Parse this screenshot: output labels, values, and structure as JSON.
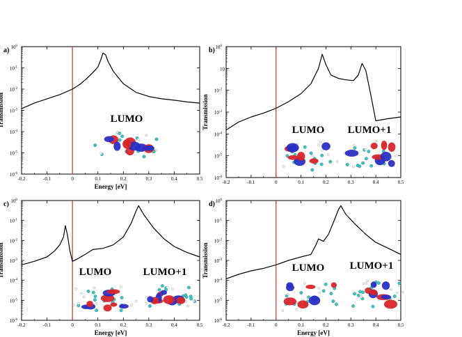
{
  "chart_data": [
    {
      "type": "line",
      "panel_label": "a)",
      "xlabel": "Energy [eV]",
      "ylabel": "Transmission",
      "xlim": [
        -0.2,
        0.5
      ],
      "ylim": [
        1e-06,
        1
      ],
      "y_scale": "log",
      "x_ticks": [
        "-0.2",
        "-0.1",
        "0",
        "0.1",
        "0.2",
        "0.3",
        "0.4",
        "0.5"
      ],
      "y_ticks": [
        {
          "base": "10",
          "exp": "-6"
        },
        {
          "base": "10",
          "exp": "-5"
        },
        {
          "base": "10",
          "exp": "-4"
        },
        {
          "base": "10",
          "exp": "-3"
        },
        {
          "base": "10",
          "exp": "-2"
        },
        {
          "base": "10",
          "exp": "-1"
        },
        {
          "base": "10",
          "exp": "0"
        }
      ],
      "vertical_line_x": 0,
      "vertical_line_color": "#c0392b",
      "line_color": "#000000",
      "orbital_labels": [
        "LUMO"
      ],
      "series": [
        {
          "x": [
            -0.2,
            -0.15,
            -0.1,
            -0.05,
            0.0,
            0.03,
            0.06,
            0.08,
            0.1,
            0.11,
            0.12,
            0.13,
            0.14,
            0.16,
            0.2,
            0.25,
            0.3,
            0.35,
            0.4,
            0.45,
            0.5
          ],
          "y": [
            0.0012,
            0.0022,
            0.0035,
            0.0055,
            0.01,
            0.017,
            0.035,
            0.06,
            0.11,
            0.22,
            0.5,
            0.42,
            0.2,
            0.07,
            0.018,
            0.007,
            0.0045,
            0.0035,
            0.003,
            0.0025,
            0.0022
          ]
        }
      ]
    },
    {
      "type": "line",
      "panel_label": "b)",
      "xlabel": "",
      "ylabel": "Transmission",
      "xlim": [
        -0.2,
        0.5
      ],
      "ylim": [
        1e-06,
        1
      ],
      "y_scale": "log",
      "x_ticks": [
        "-0.2",
        "-0.1",
        "0",
        "0.1",
        "0.2",
        "0.3",
        "0.4",
        "0.5"
      ],
      "y_ticks": [
        {
          "base": "10",
          "exp": "-6"
        },
        {
          "base": "10",
          "exp": "-5"
        },
        {
          "base": "10",
          "exp": "-4"
        },
        {
          "base": "10",
          "exp": "-3"
        },
        {
          "base": "10",
          "exp": "-2"
        },
        {
          "base": "",
          "exp": "10"
        },
        {
          "base": "10",
          "exp": "0"
        }
      ],
      "vertical_line_x": 0,
      "vertical_line_color": "#c0392b",
      "line_color": "#000000",
      "orbital_labels": [
        "LUMO",
        "LUMO+1"
      ],
      "series": [
        {
          "x": [
            -0.2,
            -0.15,
            -0.1,
            -0.05,
            0.0,
            0.05,
            0.1,
            0.14,
            0.17,
            0.185,
            0.2,
            0.22,
            0.25,
            0.28,
            0.31,
            0.33,
            0.345,
            0.36,
            0.38,
            0.4,
            0.45,
            0.5
          ],
          "y": [
            0.00015,
            0.00035,
            0.0006,
            0.0009,
            0.0015,
            0.003,
            0.007,
            0.02,
            0.1,
            0.45,
            0.15,
            0.05,
            0.035,
            0.03,
            0.028,
            0.05,
            0.17,
            0.08,
            0.006,
            0.0004,
            0.0005,
            0.0006
          ]
        }
      ]
    },
    {
      "type": "line",
      "panel_label": "c)",
      "xlabel": "Energy [eV]",
      "ylabel": "Transmission",
      "xlim": [
        -0.2,
        0.5
      ],
      "ylim": [
        1e-06,
        1
      ],
      "y_scale": "log",
      "x_ticks": [
        "-0.2",
        "-0.1",
        "0",
        "0.1",
        "0.2",
        "0.3",
        "0.4",
        "0.5"
      ],
      "y_ticks": [
        {
          "base": "10",
          "exp": "-6"
        },
        {
          "base": "10",
          "exp": "-5"
        },
        {
          "base": "10",
          "exp": "-4"
        },
        {
          "base": "10",
          "exp": "-3"
        },
        {
          "base": "10",
          "exp": "-2"
        },
        {
          "base": "10",
          "exp": "-1"
        },
        {
          "base": "10",
          "exp": "0"
        }
      ],
      "vertical_line_x": 0,
      "vertical_line_color": "#c0392b",
      "line_color": "#000000",
      "orbital_labels": [
        "LUMO",
        "LUMO+1"
      ],
      "series": [
        {
          "x": [
            -0.2,
            -0.15,
            -0.1,
            -0.07,
            -0.05,
            -0.035,
            -0.028,
            -0.02,
            -0.01,
            0.0,
            0.02,
            0.05,
            0.08,
            0.12,
            0.16,
            0.2,
            0.23,
            0.25,
            0.26,
            0.28,
            0.32,
            0.36,
            0.4,
            0.45,
            0.5
          ],
          "y": [
            0.0006,
            0.0009,
            0.0015,
            0.003,
            0.006,
            0.015,
            0.055,
            0.02,
            0.003,
            0.0009,
            0.0012,
            0.002,
            0.0035,
            0.004,
            0.006,
            0.015,
            0.07,
            0.3,
            0.55,
            0.2,
            0.04,
            0.012,
            0.005,
            0.0025,
            0.0015
          ]
        }
      ]
    },
    {
      "type": "line",
      "panel_label": "d)",
      "xlabel": "Energy [eV]",
      "ylabel": "Transmission",
      "xlim": [
        -0.2,
        0.5
      ],
      "ylim": [
        1e-06,
        1
      ],
      "y_scale": "log",
      "x_ticks": [
        "-0.2",
        "-0.1",
        "0",
        "0.1",
        "0.2",
        "0.3",
        "0.4",
        "0.5"
      ],
      "y_ticks": [
        {
          "base": "10",
          "exp": "-6"
        },
        {
          "base": "10",
          "exp": "-5"
        },
        {
          "base": "10",
          "exp": "-4"
        },
        {
          "base": "10",
          "exp": "-3"
        },
        {
          "base": "10",
          "exp": "-2"
        },
        {
          "base": "10",
          "exp": "-1"
        },
        {
          "base": "10",
          "exp": "0"
        }
      ],
      "vertical_line_x": 0,
      "vertical_line_color": "#c0392b",
      "line_color": "#000000",
      "orbital_labels": [
        "LUMO",
        "LUMO+1"
      ],
      "series": [
        {
          "x": [
            -0.2,
            -0.15,
            -0.1,
            -0.05,
            0.0,
            0.05,
            0.1,
            0.14,
            0.16,
            0.17,
            0.19,
            0.21,
            0.23,
            0.25,
            0.26,
            0.28,
            0.32,
            0.36,
            0.4,
            0.45,
            0.5
          ],
          "y": [
            0.00012,
            0.0002,
            0.0003,
            0.0004,
            0.0006,
            0.001,
            0.0015,
            0.002,
            0.006,
            0.012,
            0.009,
            0.02,
            0.08,
            0.35,
            0.55,
            0.2,
            0.06,
            0.02,
            0.008,
            0.004,
            0.002
          ]
        }
      ]
    }
  ]
}
